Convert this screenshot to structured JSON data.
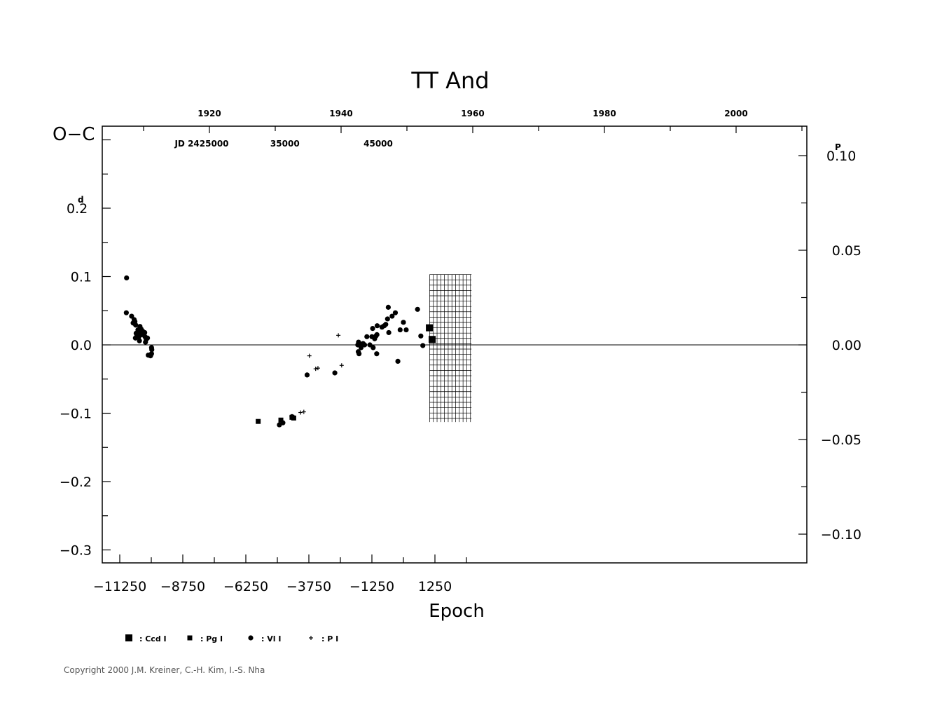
{
  "chart_data": {
    "type": "scatter",
    "title": "TT And",
    "xlabel": "Epoch",
    "ylabel": "O−C",
    "y_unit_label": "0.2",
    "y_unit_sup": "d",
    "y2_unit_label": "0.10",
    "y2_unit_sup": "P",
    "xlim": [
      -11500,
      2700
    ],
    "ylim": [
      -0.32,
      0.32
    ],
    "y2lim": [
      -0.119,
      0.119
    ],
    "x_ticks": [
      -11250,
      -8750,
      -6250,
      -3750,
      -1250,
      1250
    ],
    "x_tick_labels": [
      "−11250",
      "−8750",
      "−6250",
      "−3750",
      "−1250",
      "1250"
    ],
    "y_ticks": [
      0.2,
      0.1,
      0.0,
      -0.1,
      -0.2,
      -0.3
    ],
    "y_tick_labels": [
      "0.2",
      "0.1",
      "0.0",
      "−0.1",
      "−0.2",
      "−0.3"
    ],
    "y2_ticks": [
      0.1,
      0.05,
      0.0,
      -0.05,
      -0.1
    ],
    "y2_tick_labels": [
      "0.10",
      "0.05",
      "0.00",
      "−0.05",
      "−0.10"
    ],
    "top_year_ticks": [
      1920,
      1940,
      1960,
      1980,
      2000
    ],
    "top_year_labels": [
      "1920",
      "1940",
      "1960",
      "1980",
      "2000"
    ],
    "jd_labels": [
      {
        "text": "JD  2425000",
        "x": -8000
      },
      {
        "text": "35000",
        "x": -4700
      },
      {
        "text": "45000",
        "x": -1000
      }
    ],
    "zero_line": 0.0,
    "grid_region": {
      "x_from": 1040,
      "x_to": 2700,
      "y_from": -0.113,
      "y_to": 0.103
    },
    "series": [
      {
        "name": "Ccd I",
        "marker": "square-large",
        "points": [
          [
            1030,
            0.025
          ],
          [
            1140,
            0.008
          ]
        ]
      },
      {
        "name": "Pg I",
        "marker": "square-small",
        "points": [
          [
            -5760,
            -0.112
          ],
          [
            -4860,
            -0.11
          ],
          [
            -4420,
            -0.106
          ],
          [
            -4350,
            -0.107
          ]
        ]
      },
      {
        "name": "Vl I",
        "marker": "circle",
        "points": [
          [
            -10980,
            0.098
          ],
          [
            -10990,
            0.047
          ],
          [
            -10780,
            0.042
          ],
          [
            -10720,
            0.032
          ],
          [
            -10680,
            0.037
          ],
          [
            -10650,
            0.034
          ],
          [
            -10620,
            0.029
          ],
          [
            -10600,
            0.017
          ],
          [
            -10630,
            0.01
          ],
          [
            -10570,
            0.014
          ],
          [
            -10530,
            0.022
          ],
          [
            -10500,
            0.019
          ],
          [
            -10490,
            0.012
          ],
          [
            -10450,
            0.027
          ],
          [
            -10470,
            0.006
          ],
          [
            -10430,
            0.018
          ],
          [
            -10400,
            0.023
          ],
          [
            -10370,
            0.015
          ],
          [
            -10340,
            0.02
          ],
          [
            -10260,
            0.018
          ],
          [
            -10250,
            0.012
          ],
          [
            -10230,
            0.004
          ],
          [
            -10200,
            0.008
          ],
          [
            -10150,
            0.01
          ],
          [
            -10120,
            -0.015
          ],
          [
            -9990,
            -0.004
          ],
          [
            -9980,
            -0.007
          ],
          [
            -9990,
            -0.013
          ],
          [
            -10030,
            -0.016
          ],
          [
            -4920,
            -0.117
          ],
          [
            -4780,
            -0.114
          ],
          [
            -4420,
            -0.105
          ],
          [
            -3820,
            -0.044
          ],
          [
            -2720,
            -0.041
          ],
          [
            -1810,
            0.0
          ],
          [
            -1780,
            0.004
          ],
          [
            -1790,
            -0.01
          ],
          [
            -1760,
            -0.013
          ],
          [
            -1680,
            -0.004
          ],
          [
            -1650,
            0.001
          ],
          [
            -1600,
            0.002
          ],
          [
            -1540,
            0.0
          ],
          [
            -1450,
            0.012
          ],
          [
            -1330,
            0.0
          ],
          [
            -1250,
            0.012
          ],
          [
            -1220,
            0.024
          ],
          [
            -1200,
            -0.004
          ],
          [
            -1140,
            0.009
          ],
          [
            -1090,
            0.013
          ],
          [
            -1050,
            0.015
          ],
          [
            -1060,
            -0.013
          ],
          [
            -1040,
            0.028
          ],
          [
            -850,
            0.026
          ],
          [
            -760,
            0.028
          ],
          [
            -700,
            0.03
          ],
          [
            -630,
            0.038
          ],
          [
            -600,
            0.055
          ],
          [
            -580,
            0.018
          ],
          [
            -450,
            0.042
          ],
          [
            -320,
            0.047
          ],
          [
            -220,
            -0.024
          ],
          [
            -130,
            0.022
          ],
          [
            0,
            0.033
          ],
          [
            110,
            0.022
          ],
          [
            560,
            0.052
          ],
          [
            690,
            0.013
          ],
          [
            770,
            -0.001
          ]
        ]
      },
      {
        "name": "P I",
        "marker": "plus",
        "points": [
          [
            -4080,
            -0.099
          ],
          [
            -3950,
            -0.098
          ],
          [
            -3730,
            -0.016
          ],
          [
            -3480,
            -0.035
          ],
          [
            -3390,
            -0.034
          ],
          [
            -2580,
            0.014
          ],
          [
            -2450,
            -0.03
          ]
        ]
      }
    ],
    "legend": [
      {
        "marker": "square-large",
        "label": ": Ccd I"
      },
      {
        "marker": "square-small",
        "label": ": Pg I"
      },
      {
        "marker": "circle",
        "label": ": Vl I"
      },
      {
        "marker": "plus",
        "label": ": P I"
      }
    ],
    "legend_position": "bottom-left",
    "grid": false
  },
  "copyright": "Copyright 2000 J.M. Kreiner, C.-H. Kim, I.-S. Nha"
}
